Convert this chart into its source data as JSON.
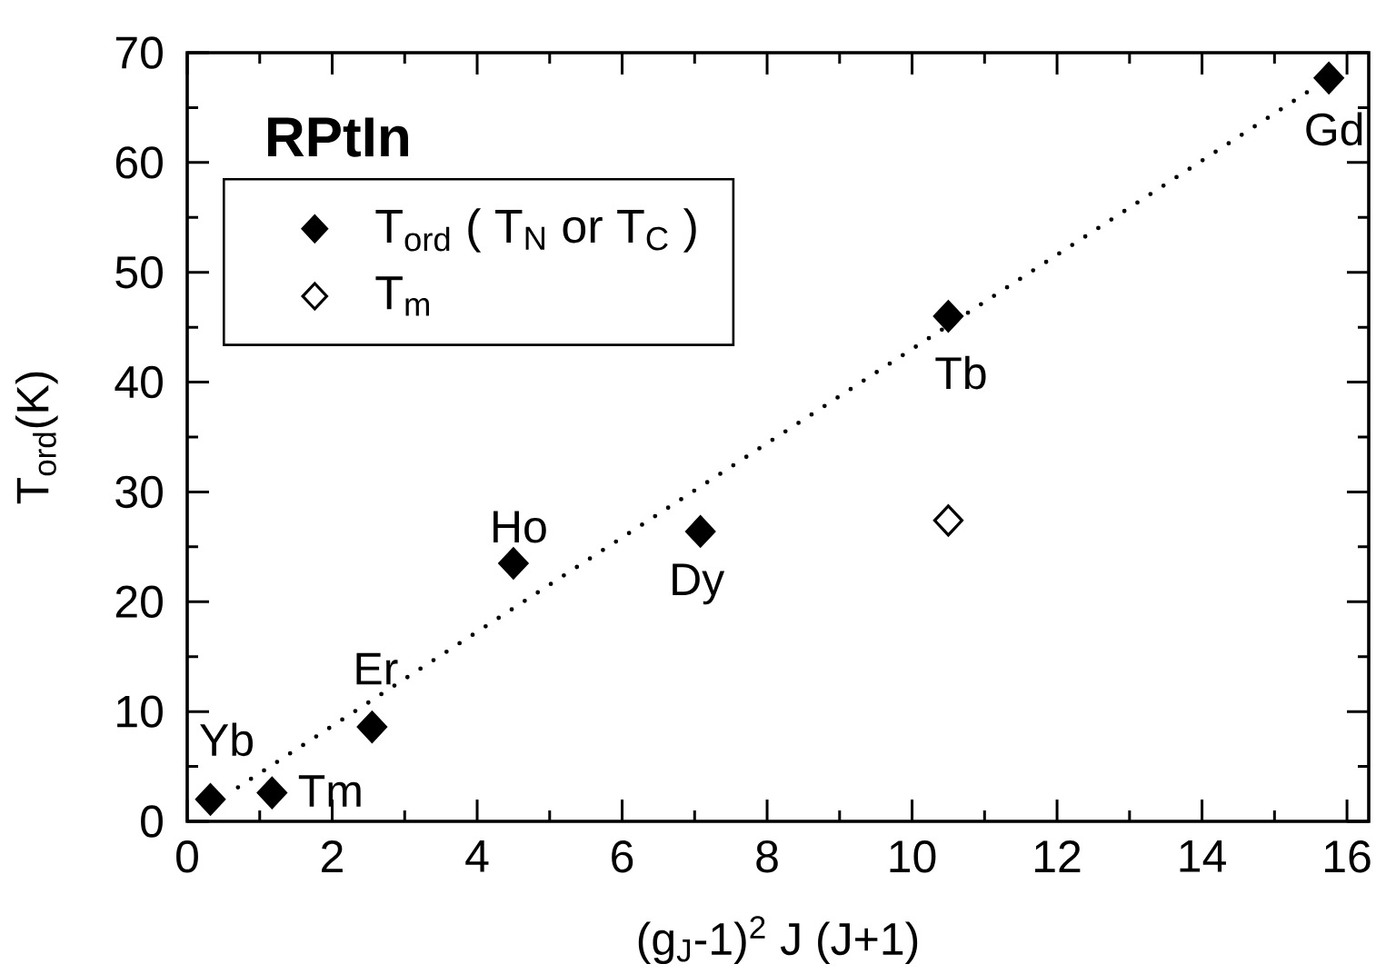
{
  "chart_data": {
    "type": "scatter",
    "title": "RPtIn",
    "xlabel": "(g$_{J}$-1)$^{2}$ J (J+1)",
    "ylabel": "T$_{ord}$(K)",
    "xlim": [
      0,
      16.3
    ],
    "ylim": [
      0,
      70
    ],
    "xticks": [
      0,
      2,
      4,
      6,
      8,
      10,
      12,
      14,
      16
    ],
    "yticks": [
      0,
      10,
      20,
      30,
      40,
      50,
      60,
      70
    ],
    "marker": "diamond",
    "legend": "top left",
    "series": [
      {
        "name": "T$_{ord}$ ( T$_{N}$ or T$_{C}$ )",
        "color": "#000000",
        "x": [
          0.32,
          1.17,
          2.55,
          4.5,
          7.08,
          10.5,
          15.75
        ],
        "values": [
          2.0,
          2.6,
          8.6,
          23.5,
          26.4,
          46.0,
          67.7
        ]
      },
      {
        "name": "T$_{m}$",
        "color": "#ffffff",
        "x": [
          10.5
        ],
        "values": [
          27.4
        ]
      },
      {
        "type": "line",
        "color": "#000000",
        "line_style": "dotted",
        "marker": "none",
        "x": [
          0.7,
          15.45
        ],
        "values": [
          3.1,
          66.4
        ]
      }
    ],
    "annotations": [
      {
        "text": "Yb",
        "x": 0.32,
        "y": 2.0
      },
      {
        "text": "Tm",
        "x": 1.17,
        "y": 2.6
      },
      {
        "text": "Er",
        "x": 2.55,
        "y": 8.6
      },
      {
        "text": "Ho",
        "x": 4.5,
        "y": 23.5
      },
      {
        "text": "Dy",
        "x": 7.08,
        "y": 26.4
      },
      {
        "text": "Tb",
        "x": 10.5,
        "y": 46.0
      },
      {
        "text": "Gd",
        "x": 15.75,
        "y": 67.7
      }
    ]
  }
}
